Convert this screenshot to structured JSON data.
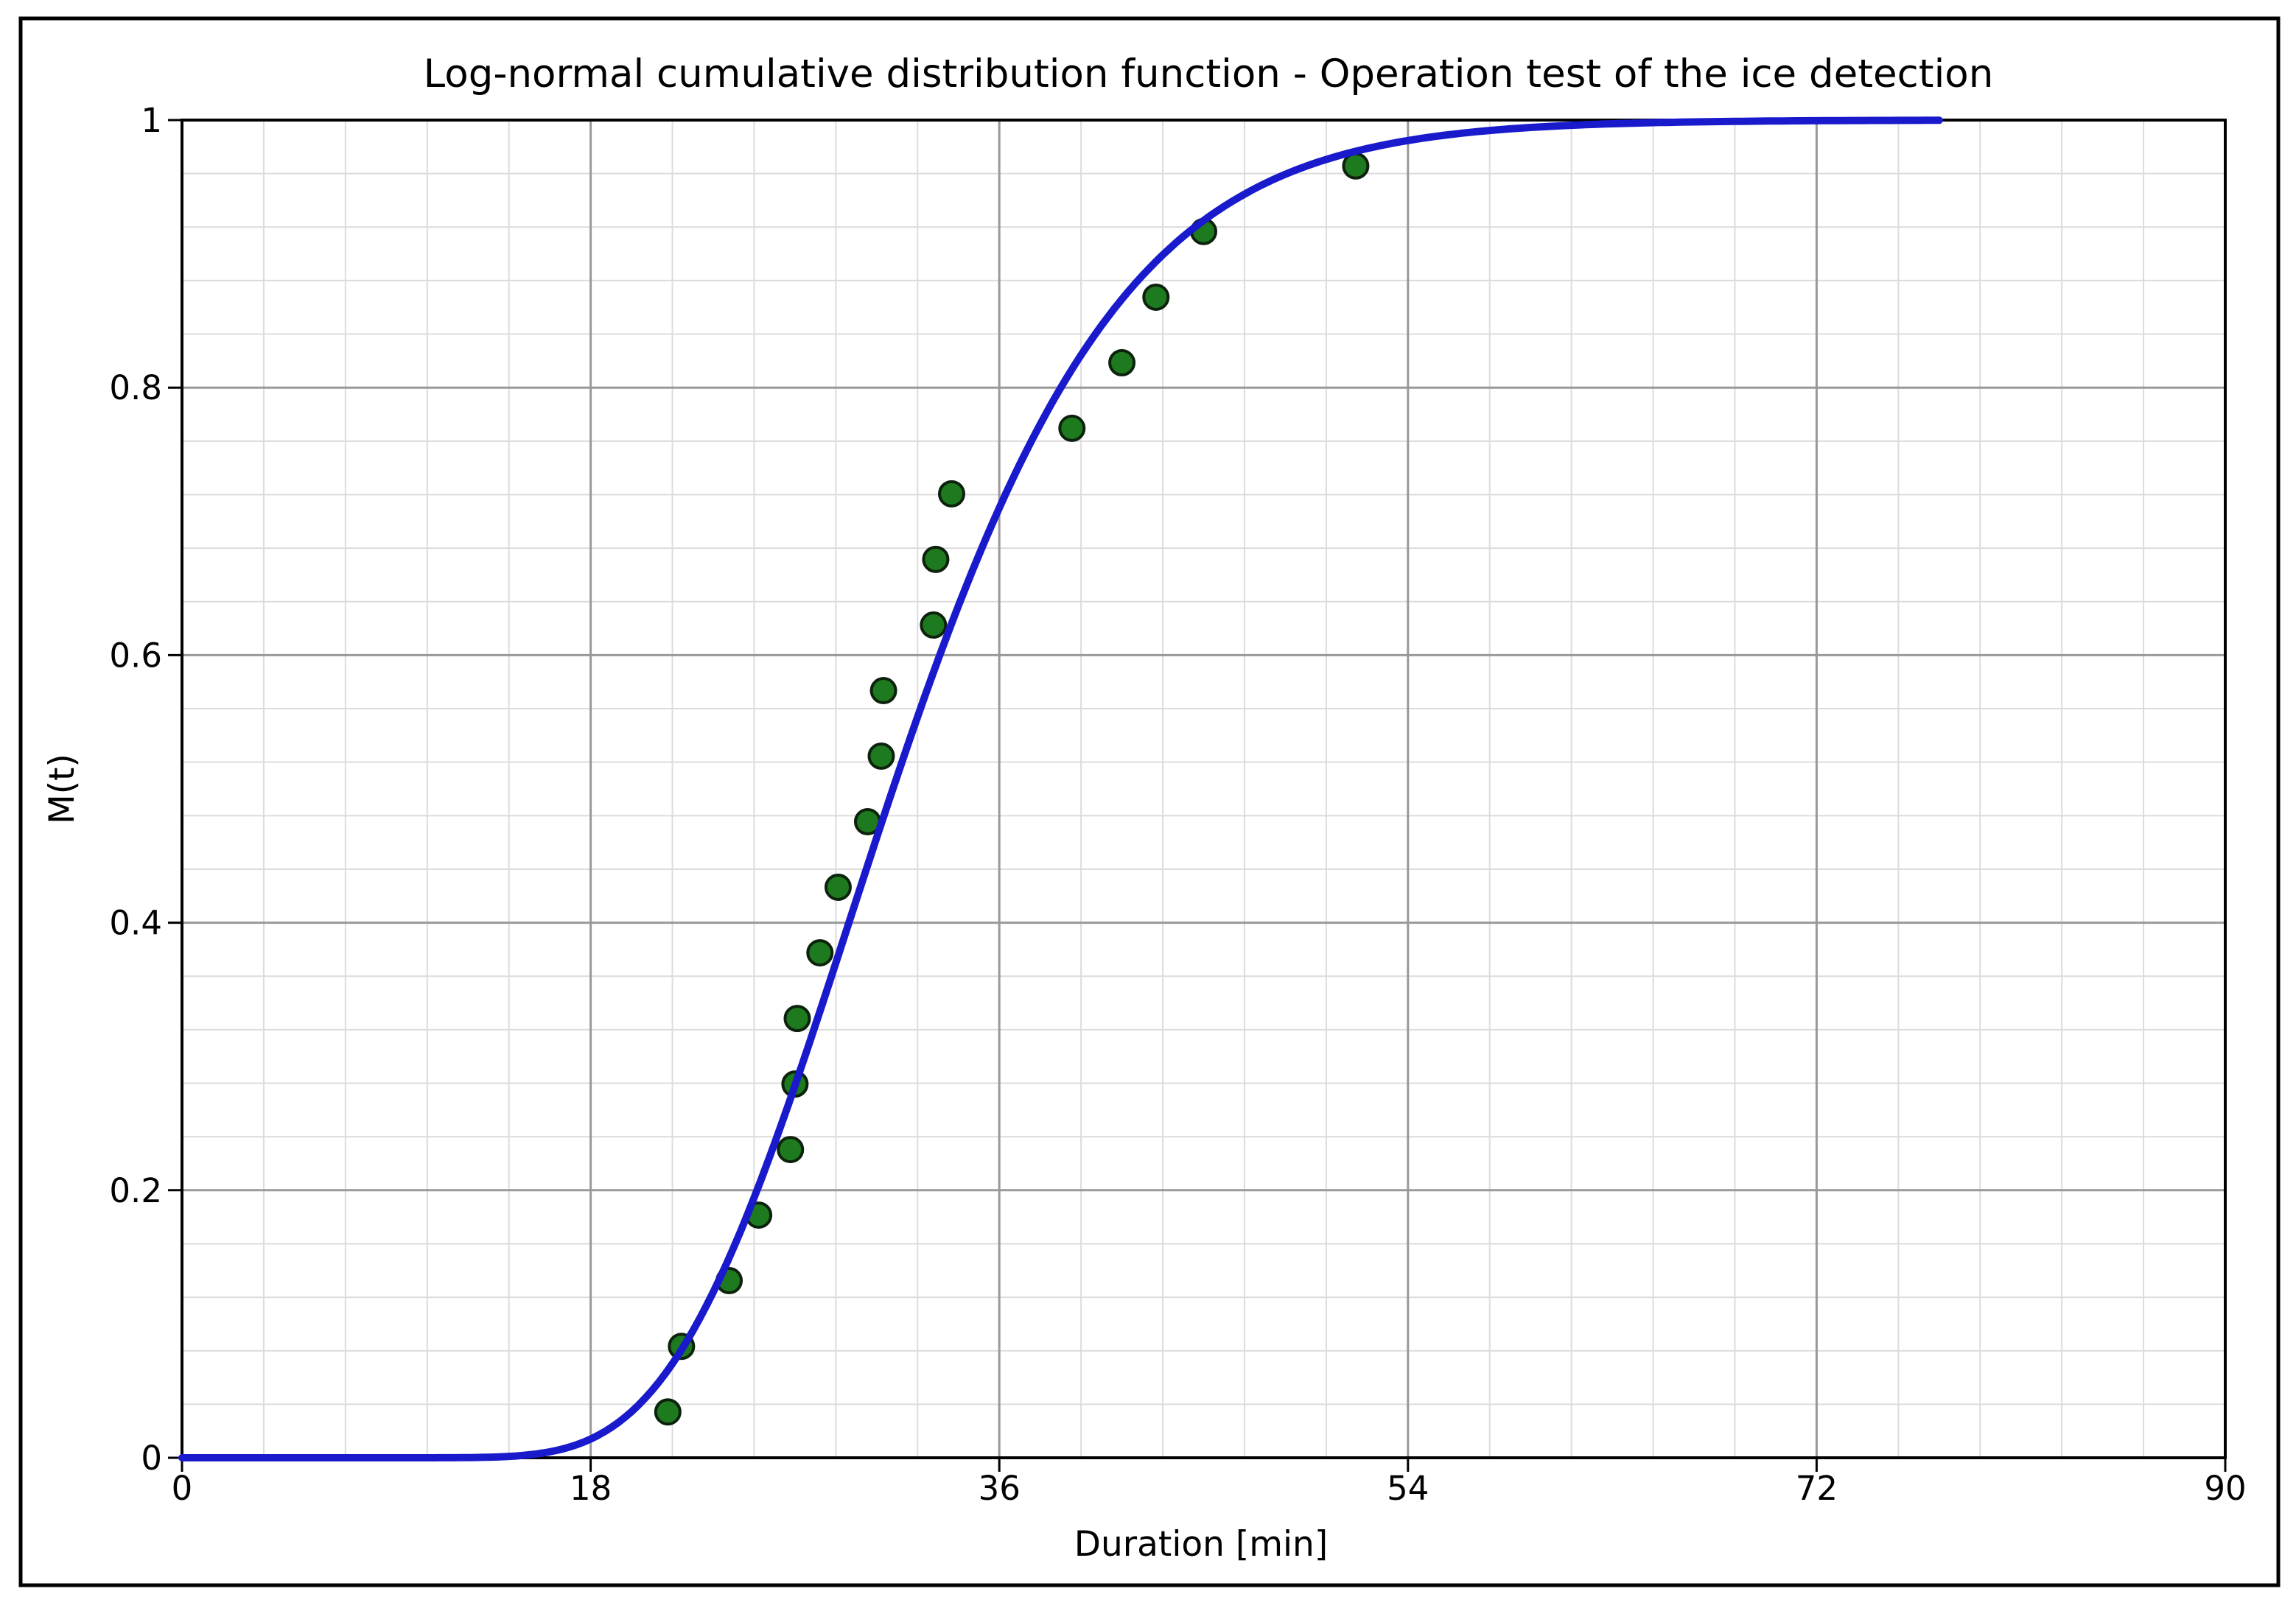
{
  "figure": {
    "background_color": "#FFFFFF",
    "border_color": "#000000"
  },
  "chart_data": {
    "type": "scatter",
    "title": "Log-normal cumulative distribution function - Operation test of the ice detection",
    "xlabel": "Duration [min]",
    "ylabel": "M(t)",
    "xlim": [
      0,
      90
    ],
    "ylim": [
      0,
      1
    ],
    "x_major_ticks": [
      0,
      18,
      36,
      54,
      72,
      90
    ],
    "x_tick_labels": [
      "0",
      "18",
      "36",
      "54",
      "72",
      "90"
    ],
    "y_major_ticks": [
      0,
      0.2,
      0.4,
      0.6,
      0.8,
      1
    ],
    "y_tick_labels": [
      "0",
      "0.2",
      "0.4",
      "0.6",
      "0.8",
      "1"
    ],
    "x_minor_step": 3.6,
    "y_minor_step": 0.04,
    "grid": {
      "show_major": true,
      "show_minor": true,
      "major_color": "#999999",
      "minor_color": "#DCDCDC"
    },
    "axis_color": "#000000",
    "points": {
      "name": "operation-test-durations-median-ranks",
      "marker": "circle",
      "fill_color": "#1E7A1E",
      "edge_color": "#0D220D",
      "x": [
        21.4,
        22.0,
        24.1,
        25.4,
        26.8,
        27.0,
        27.1,
        28.1,
        28.9,
        30.2,
        30.8,
        30.9,
        33.1,
        33.2,
        33.9,
        39.2,
        41.4,
        42.9,
        45.0,
        51.7
      ],
      "y": [
        0.0343,
        0.0833,
        0.1324,
        0.1814,
        0.2304,
        0.2794,
        0.3284,
        0.3775,
        0.4265,
        0.4755,
        0.5245,
        0.5735,
        0.6225,
        0.6716,
        0.7206,
        0.7696,
        0.8186,
        0.8676,
        0.9167,
        0.9657
      ],
      "count": 20
    },
    "fit_curve": {
      "name": "log-normal-cdf-fit",
      "color": "#1A1ACD",
      "distribution": "lognormal",
      "log_mean_mu": 3.444,
      "log_std_sigma": 0.252,
      "median_min": 31.3,
      "t_draw_min": 0,
      "t_draw_max": 77.5
    },
    "legend": {
      "visible": false
    }
  }
}
